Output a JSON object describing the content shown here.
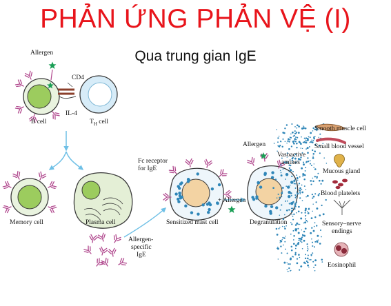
{
  "title": "PHẢN ỨNG PHẢN VỆ (I)",
  "subtitle": "Qua trung gian IgE",
  "labels": {
    "allergen_top": "Allergen",
    "cd4": "CD4",
    "il4": "IL-4",
    "b_cell": "B cell",
    "th_cell_main": "T",
    "th_cell_sub": "H",
    "th_cell_tail": " cell",
    "memory_cell": "Memory cell",
    "plasma_cell": "Plasma cell",
    "allergen_specific_1": "Allergen-",
    "allergen_specific_2": "specific",
    "allergen_specific_3": "IgE",
    "fc_receptor_1": "Fc receptor",
    "fc_receptor_2": "for IgE",
    "sensitized_mast_cell": "Sensitized mast cell",
    "plus_allergen": "+ Allergen",
    "allergen_right": "Allergen",
    "vasoactive_1": "Vasoactive",
    "vasoactive_2": "amines",
    "degranulation": "Degranulation",
    "smooth_muscle": "Smooth muscle cell",
    "small_vessel": "Small blood vessel",
    "mucous_gland": "Mucous gland",
    "blood_platelets": "Blood platelets",
    "sensory_nerve_1": "Sensory–nerve",
    "sensory_nerve_2": "endings",
    "eosinophil": "Eosinophil"
  },
  "colors": {
    "title": "#e8141b",
    "cell_outline": "#3a3a3a",
    "b_cell_fill": "#e9f3df",
    "nucleus_green": "#9ccc5e",
    "th_fill": "#d7ecf8",
    "th_nucleus": "#ffffff",
    "mast_nucleus": "#f3d3a3",
    "granule": "#2f86b8",
    "antibody": "#b0478d",
    "allergen": "#1a9e55",
    "arrow": "#6fc0e6"
  }
}
